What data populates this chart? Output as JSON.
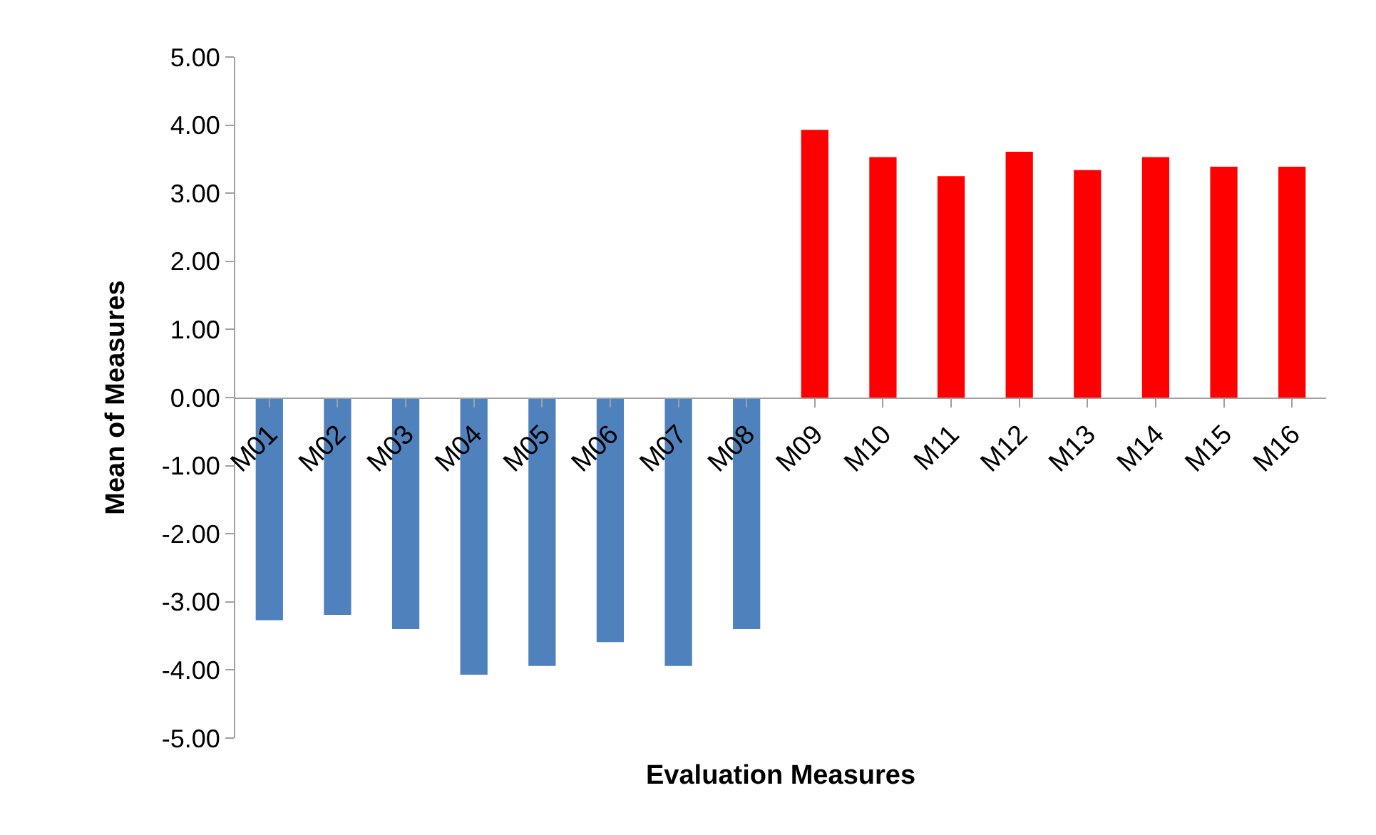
{
  "chart_data": {
    "type": "bar",
    "xlabel": "Evaluation Measures",
    "ylabel": "Mean of Measures",
    "categories": [
      "M01",
      "M02",
      "M03",
      "M04",
      "M05",
      "M06",
      "M07",
      "M08",
      "M09",
      "M10",
      "M11",
      "M12",
      "M13",
      "M14",
      "M15",
      "M16"
    ],
    "values": [
      -3.27,
      -3.19,
      -3.4,
      -4.07,
      -3.94,
      -3.59,
      -3.94,
      -3.4,
      3.93,
      3.53,
      3.25,
      3.61,
      3.34,
      3.53,
      3.39,
      3.39
    ],
    "colors": [
      "#4f81bd",
      "#4f81bd",
      "#4f81bd",
      "#4f81bd",
      "#4f81bd",
      "#4f81bd",
      "#4f81bd",
      "#4f81bd",
      "#ff0000",
      "#ff0000",
      "#ff0000",
      "#ff0000",
      "#ff0000",
      "#ff0000",
      "#ff0000",
      "#ff0000"
    ],
    "ylim": [
      -5,
      5
    ],
    "yticks": [
      {
        "value": -5,
        "label": "-5.00"
      },
      {
        "value": -4,
        "label": "-4.00"
      },
      {
        "value": -3,
        "label": "-3.00"
      },
      {
        "value": -2,
        "label": "-2.00"
      },
      {
        "value": -1,
        "label": "-1.00"
      },
      {
        "value": 0,
        "label": "0.00"
      },
      {
        "value": 1,
        "label": "1.00"
      },
      {
        "value": 2,
        "label": "2.00"
      },
      {
        "value": 3,
        "label": "3.00"
      },
      {
        "value": 4,
        "label": "4.00"
      },
      {
        "value": 5,
        "label": "5.00"
      }
    ],
    "orientation": "vertical"
  }
}
